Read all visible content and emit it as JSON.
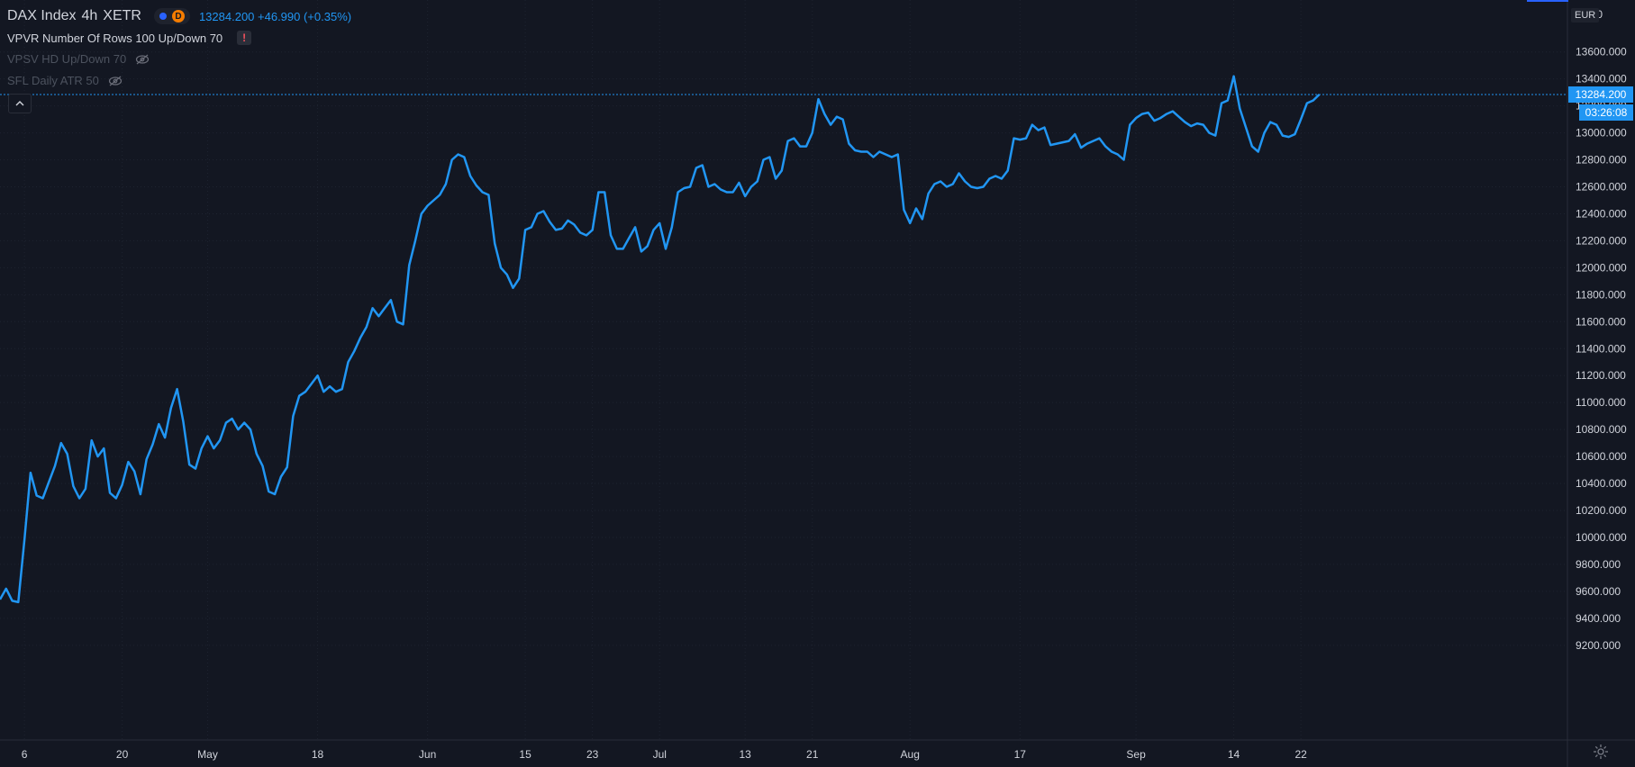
{
  "legend": {
    "symbol": "DAX Index",
    "interval": "4h",
    "exchange": "XETR",
    "badge": "D",
    "last_values": "13284.200 +46.990 (+0.35%)"
  },
  "indicators": [
    {
      "label": "VPVR Number Of Rows 100 Up/Down 70",
      "icon": "warning-icon"
    },
    {
      "label": "VPSV HD Up/Down 70",
      "icon": "hidden-eye-icon"
    },
    {
      "label": "SFL Daily ATR 50",
      "icon": "hidden-eye-icon"
    }
  ],
  "price_scale": {
    "currency": "EUR",
    "partial_top_label": "13 00",
    "current_price_label": "13284.200",
    "countdown_label": "03:26:08"
  },
  "colors": {
    "background": "#131722",
    "line": "#2196f3",
    "grid": "#1e2330",
    "text": "#d1d4dc"
  },
  "chart_data": {
    "type": "line",
    "title": "DAX Index · 4h · XETR",
    "xlabel": "",
    "ylabel": "",
    "ylim": [
      9130,
      13760
    ],
    "y_ticks": [
      9200,
      9400,
      9600,
      9800,
      10000,
      10200,
      10400,
      10600,
      10800,
      11000,
      11200,
      11400,
      11600,
      11800,
      12000,
      12200,
      12400,
      12600,
      12800,
      13000,
      13200,
      13400,
      13600
    ],
    "x_ticks": [
      {
        "label": "6",
        "index": 4
      },
      {
        "label": "20",
        "index": 20
      },
      {
        "label": "May",
        "index": 34
      },
      {
        "label": "18",
        "index": 52
      },
      {
        "label": "Jun",
        "index": 70
      },
      {
        "label": "15",
        "index": 86
      },
      {
        "label": "23",
        "index": 97
      },
      {
        "label": "Jul",
        "index": 108
      },
      {
        "label": "13",
        "index": 122
      },
      {
        "label": "21",
        "index": 133
      },
      {
        "label": "Aug",
        "index": 149
      },
      {
        "label": "17",
        "index": 167
      },
      {
        "label": "Sep",
        "index": 186
      },
      {
        "label": "14",
        "index": 202
      },
      {
        "label": "22",
        "index": 213
      }
    ],
    "grid": true,
    "current_price": 13284.2,
    "series": [
      {
        "name": "DAX Index",
        "values": [
          9540,
          9620,
          9530,
          9520,
          9980,
          10480,
          10310,
          10290,
          10410,
          10530,
          10700,
          10620,
          10380,
          10290,
          10360,
          10720,
          10600,
          10660,
          10330,
          10290,
          10390,
          10560,
          10490,
          10320,
          10580,
          10690,
          10840,
          10740,
          10960,
          11100,
          10860,
          10540,
          10510,
          10660,
          10750,
          10660,
          10720,
          10850,
          10880,
          10800,
          10850,
          10800,
          10620,
          10530,
          10340,
          10320,
          10450,
          10520,
          10900,
          11050,
          11080,
          11140,
          11200,
          11080,
          11120,
          11080,
          11100,
          11300,
          11380,
          11480,
          11560,
          11700,
          11640,
          11700,
          11760,
          11600,
          11580,
          12020,
          12200,
          12400,
          12460,
          12500,
          12540,
          12620,
          12800,
          12840,
          12820,
          12680,
          12610,
          12560,
          12540,
          12180,
          12000,
          11950,
          11850,
          11920,
          12280,
          12300,
          12400,
          12420,
          12340,
          12280,
          12290,
          12350,
          12320,
          12260,
          12240,
          12280,
          12560,
          12560,
          12240,
          12140,
          12140,
          12220,
          12300,
          12120,
          12160,
          12280,
          12330,
          12140,
          12300,
          12560,
          12590,
          12600,
          12740,
          12760,
          12600,
          12620,
          12580,
          12560,
          12560,
          12630,
          12530,
          12600,
          12640,
          12800,
          12820,
          12660,
          12720,
          12940,
          12960,
          12900,
          12900,
          13000,
          13250,
          13140,
          13060,
          13120,
          13100,
          12920,
          12870,
          12860,
          12860,
          12820,
          12860,
          12840,
          12820,
          12840,
          12430,
          12330,
          12440,
          12360,
          12550,
          12620,
          12640,
          12600,
          12620,
          12700,
          12640,
          12600,
          12590,
          12600,
          12660,
          12680,
          12660,
          12720,
          12960,
          12950,
          12960,
          13060,
          13020,
          13040,
          12910,
          12920,
          12930,
          12940,
          12990,
          12890,
          12920,
          12940,
          12960,
          12900,
          12860,
          12840,
          12800,
          13060,
          13110,
          13140,
          13150,
          13090,
          13110,
          13140,
          13160,
          13120,
          13080,
          13050,
          13070,
          13060,
          13000,
          12980,
          13220,
          13240,
          13420,
          13180,
          13040,
          12900,
          12860,
          13000,
          13080,
          13060,
          12980,
          12970,
          12990,
          13100,
          13220,
          13240,
          13284.2
        ]
      }
    ]
  }
}
